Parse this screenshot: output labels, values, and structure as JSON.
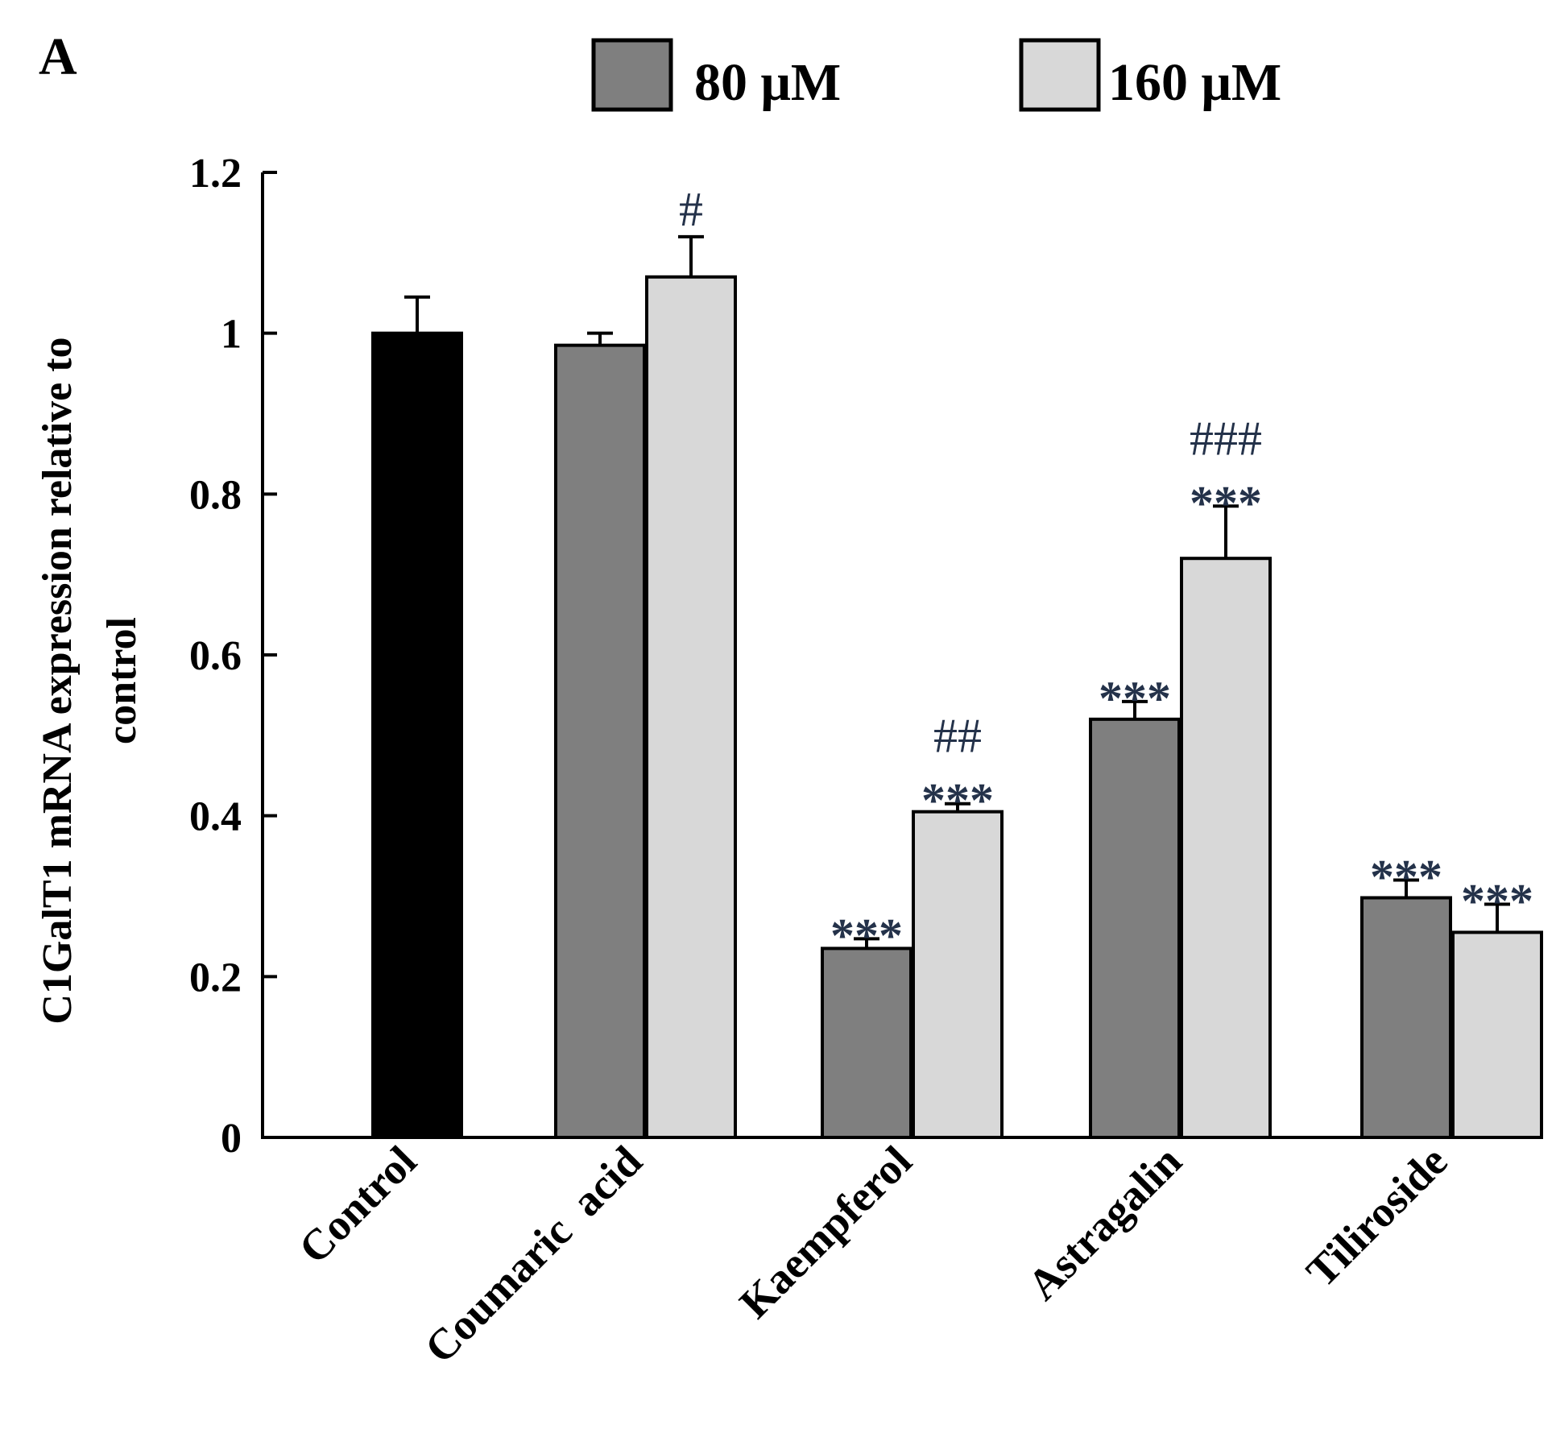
{
  "chart_data": {
    "type": "bar",
    "panel_label": "A",
    "ylabel_line1": "C1GalT1 mRNA expression relative to",
    "ylabel_line2": "control",
    "ylim": [
      0,
      1.2
    ],
    "yticks": [
      "0",
      "0.2",
      "0.4",
      "0.6",
      "0.8",
      "1",
      "1.2"
    ],
    "ytick_values": [
      0,
      0.2,
      0.4,
      0.6,
      0.8,
      1.0,
      1.2
    ],
    "legend_placement": "top",
    "legend": [
      {
        "name": "80 μM",
        "color": "#7f7f7f"
      },
      {
        "name": "160 μM",
        "color": "#d8d8d8"
      }
    ],
    "groups": [
      {
        "category": "Control",
        "bars": [
          {
            "series": "Control",
            "value": 1.0,
            "error": 0.045,
            "color": "#000000",
            "stars": "",
            "hashes": ""
          }
        ]
      },
      {
        "category": "Coumaric  acid",
        "bars": [
          {
            "series": "80 μM",
            "value": 0.985,
            "error": 0.015,
            "color": "#7f7f7f",
            "stars": "",
            "hashes": ""
          },
          {
            "series": "160 μM",
            "value": 1.07,
            "error": 0.05,
            "color": "#d8d8d8",
            "stars": "",
            "hashes": "#"
          }
        ]
      },
      {
        "category": "Kaempferol",
        "bars": [
          {
            "series": "80 μM",
            "value": 0.235,
            "error": 0.012,
            "color": "#7f7f7f",
            "stars": "***",
            "hashes": ""
          },
          {
            "series": "160 μM",
            "value": 0.405,
            "error": 0.01,
            "color": "#d8d8d8",
            "stars": "***",
            "hashes": "##"
          }
        ]
      },
      {
        "category": "Astragalin",
        "bars": [
          {
            "series": "80 μM",
            "value": 0.52,
            "error": 0.022,
            "color": "#7f7f7f",
            "stars": "***",
            "hashes": ""
          },
          {
            "series": "160 μM",
            "value": 0.72,
            "error": 0.065,
            "color": "#d8d8d8",
            "stars": "***",
            "hashes": "###"
          }
        ]
      },
      {
        "category": "Tiliroside",
        "bars": [
          {
            "series": "80 μM",
            "value": 0.298,
            "error": 0.022,
            "color": "#7f7f7f",
            "stars": "***",
            "hashes": ""
          },
          {
            "series": "160 μM",
            "value": 0.255,
            "error": 0.035,
            "color": "#d8d8d8",
            "stars": "***",
            "hashes": ""
          }
        ]
      }
    ]
  }
}
